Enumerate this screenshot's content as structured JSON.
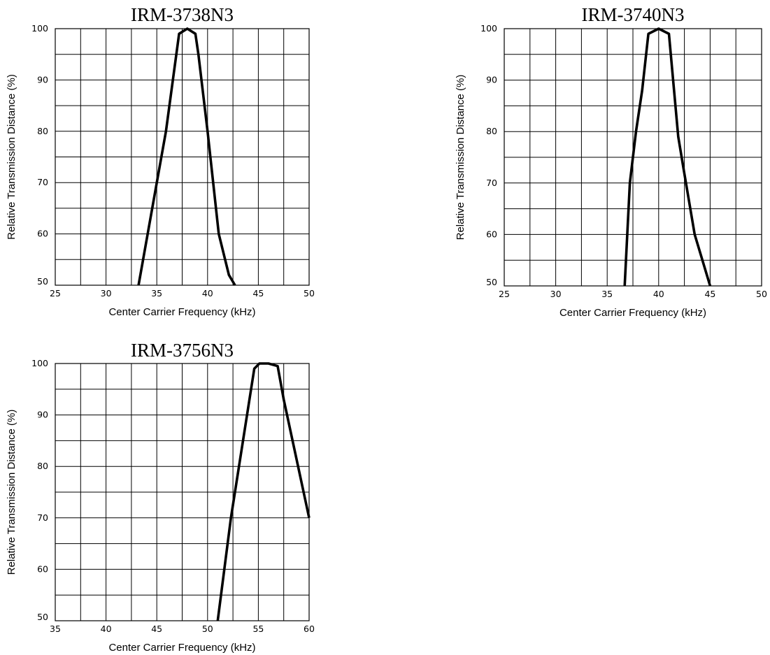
{
  "chart_data": [
    {
      "type": "line",
      "title": "IRM-3738N3",
      "xlabel": "Center Carrier Frequency  (kHz)",
      "ylabel": "Relative Transmission Distance (%)",
      "xlim": [
        25,
        50
      ],
      "ylim": [
        50,
        100
      ],
      "xticks": [
        "25",
        "30",
        "35",
        "40",
        "45",
        "50"
      ],
      "yticks": [
        "50",
        "60",
        "70",
        "80",
        "90",
        "100"
      ],
      "grid": true,
      "series": [
        {
          "x": [
            33.2,
            35.0,
            35.9,
            37.2,
            38.0,
            38.8,
            39.1,
            40.0,
            41.1,
            42.1,
            42.7
          ],
          "y": [
            50,
            70,
            80,
            99,
            100,
            99,
            95,
            80,
            60,
            52,
            50
          ]
        }
      ]
    },
    {
      "type": "line",
      "title": "IRM-3740N3",
      "xlabel": "Center Carrier Frequency  (kHz)",
      "ylabel": "Relative Transmission Distance (%)",
      "xlim": [
        25,
        50
      ],
      "ylim": [
        50,
        100
      ],
      "xticks": [
        "25",
        "30",
        "35",
        "40",
        "45",
        "50"
      ],
      "yticks": [
        "50",
        "60",
        "70",
        "80",
        "90",
        "100"
      ],
      "grid": true,
      "series": [
        {
          "x": [
            36.7,
            37.2,
            37.8,
            38.4,
            39.0,
            40.0,
            41.0,
            41.9,
            42.4,
            43.5,
            45.0
          ],
          "y": [
            50,
            70,
            80,
            88,
            99,
            100,
            99,
            79,
            73,
            60,
            50
          ]
        }
      ]
    },
    {
      "type": "line",
      "title": "IRM-3756N3",
      "xlabel": "Center Carrier Frequency  (kHz)",
      "ylabel": "Relative Transmission Distance (%)",
      "xlim": [
        35,
        60
      ],
      "ylim": [
        50,
        100
      ],
      "xticks": [
        "35",
        "40",
        "45",
        "50",
        "55",
        "60"
      ],
      "yticks": [
        "50",
        "60",
        "70",
        "80",
        "90",
        "100"
      ],
      "grid": true,
      "series": [
        {
          "x": [
            51.0,
            52.3,
            54.6,
            55.1,
            56.0,
            56.9,
            57.5,
            60.0
          ],
          "y": [
            50,
            70,
            99,
            100,
            100,
            99.5,
            93,
            70
          ]
        }
      ]
    }
  ]
}
